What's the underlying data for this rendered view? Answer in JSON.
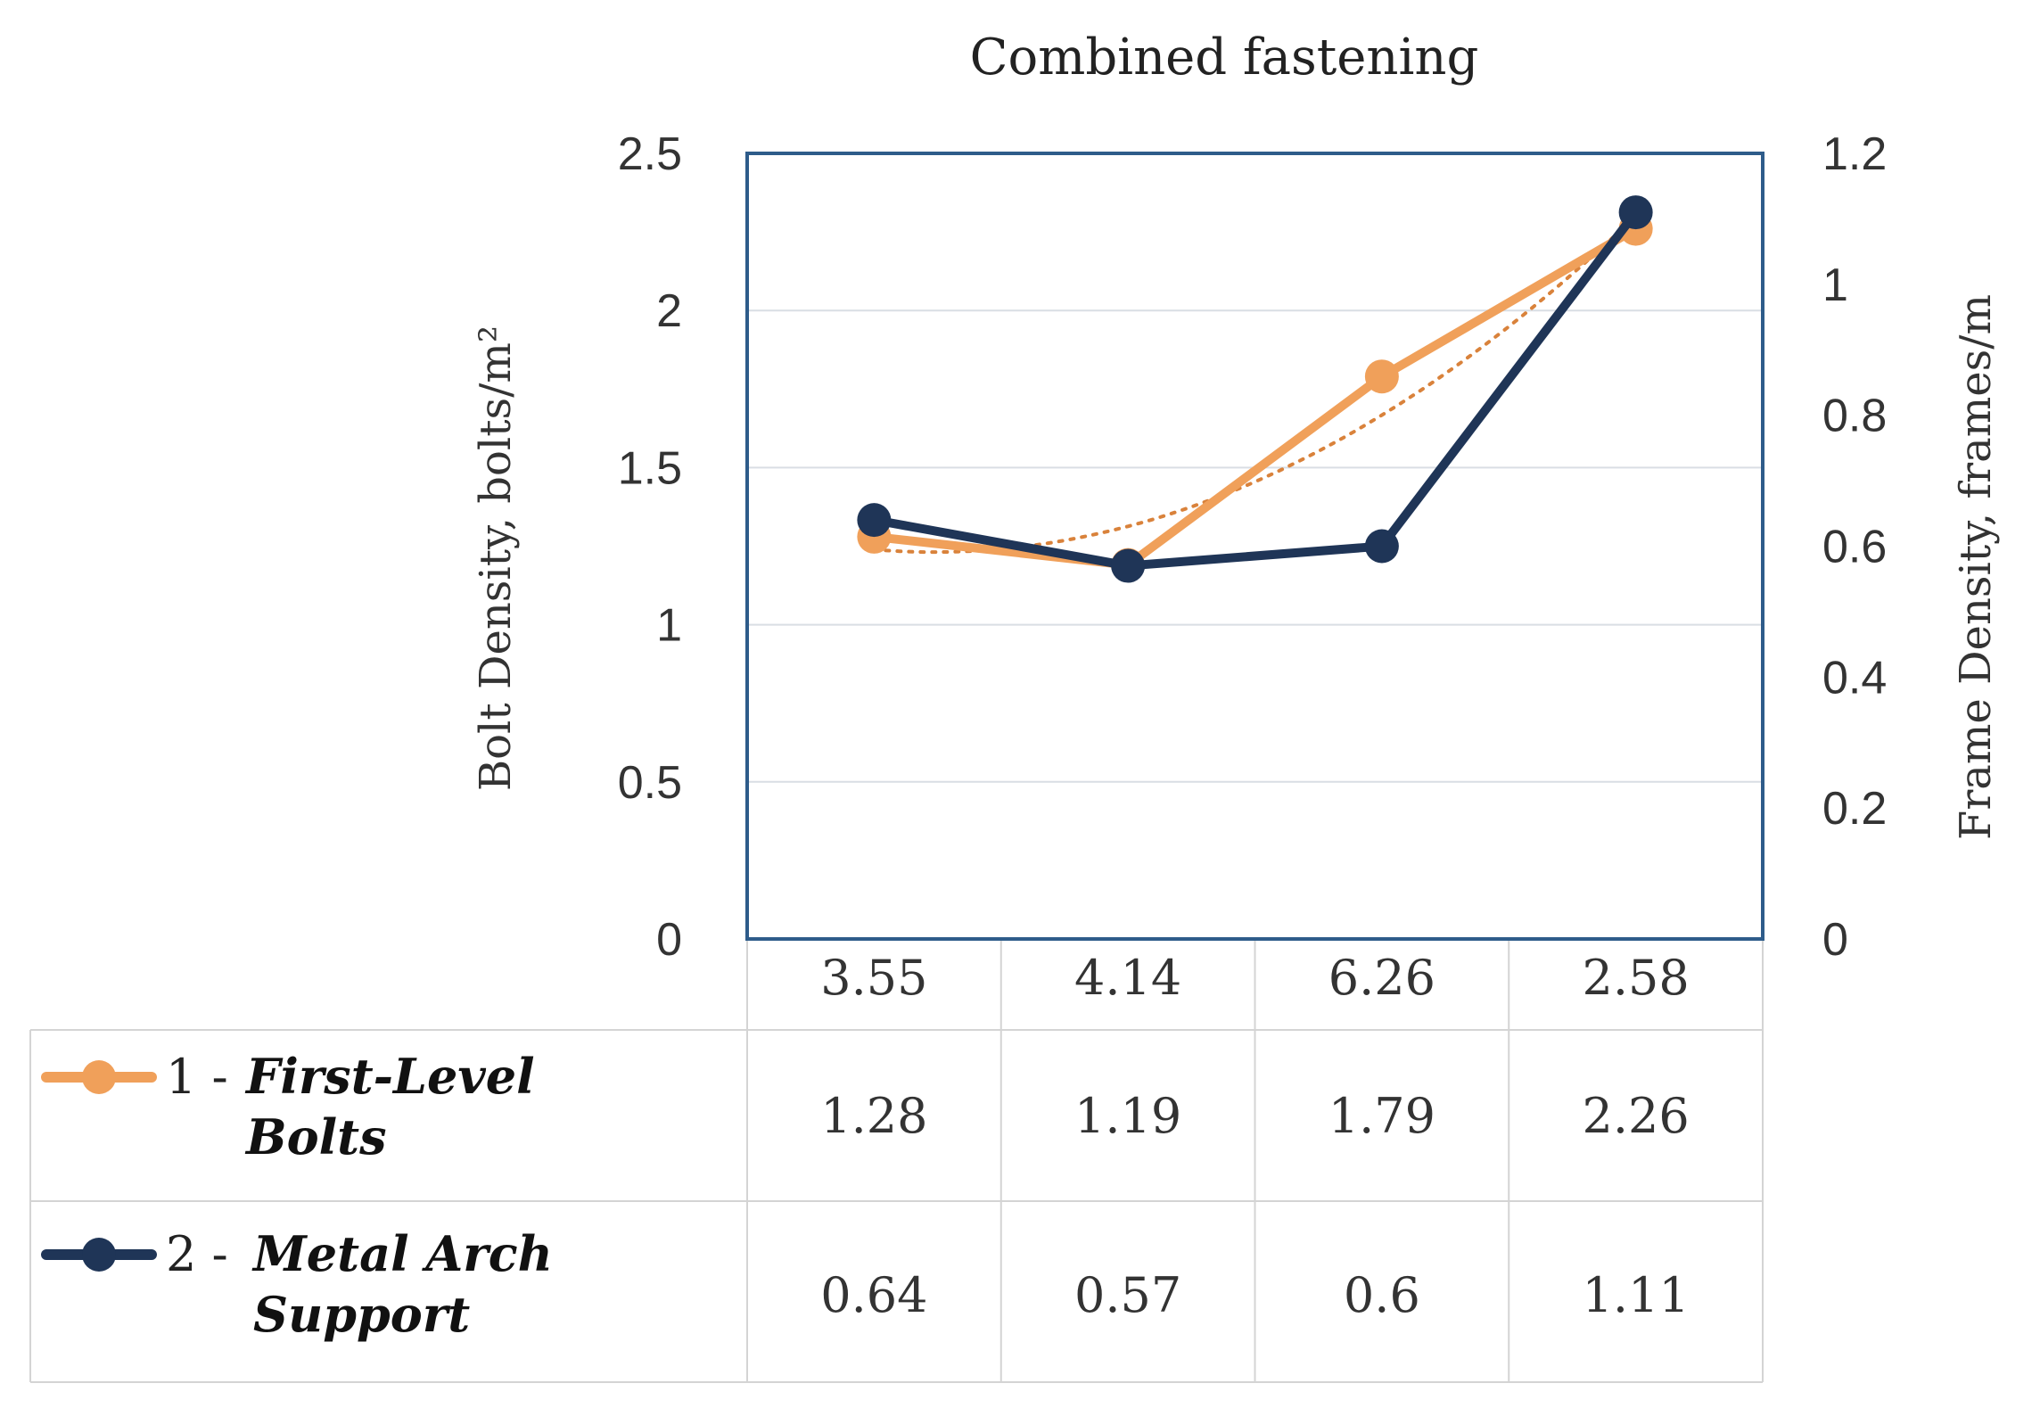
{
  "chart_data": {
    "type": "line",
    "title": "Combined fastening",
    "categories": [
      "3.55",
      "4.14",
      "6.26",
      "2.58"
    ],
    "ylabel": "Bolt Density, bolts/m²",
    "y2label": "Frame Density, frames/m",
    "ylim": [
      0,
      2.5
    ],
    "y2lim": [
      0,
      1.2
    ],
    "yticks": [
      "0",
      "0.5",
      "1",
      "1.5",
      "2",
      "2.5"
    ],
    "y2ticks": [
      "0",
      "0.2",
      "0.4",
      "0.6",
      "0.8",
      "1",
      "1.2"
    ],
    "grid": true,
    "series": [
      {
        "name": "1 - First-Level Bolts",
        "prefix": "1 - ",
        "label_line1": "First-Level",
        "label_line2": "Bolts",
        "axis": "left",
        "color": "#F0A05A",
        "values": [
          1.28,
          1.19,
          1.79,
          2.26
        ],
        "value_labels": [
          "1.28",
          "1.19",
          "1.79",
          "2.26"
        ],
        "trendline": true
      },
      {
        "name": "2 - Metal Arch Support",
        "prefix": "2 - ",
        "label_line1": "Metal Arch",
        "label_line2": "Support",
        "axis": "right",
        "color": "#1F3557",
        "values": [
          0.64,
          0.57,
          0.6,
          1.11
        ],
        "value_labels": [
          "0.64",
          "0.57",
          "0.6",
          "1.11"
        ],
        "trendline": false
      }
    ],
    "colors": {
      "frame": "#2E5C8A",
      "grid": "#D9DEE4",
      "table_border": "#D4D4D4",
      "trend": "#D9823B"
    }
  }
}
